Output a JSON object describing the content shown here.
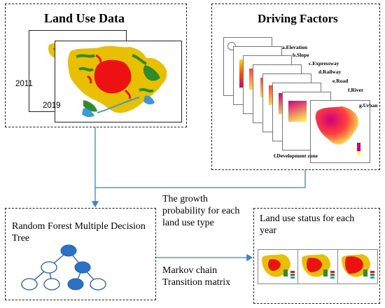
{
  "land_use": {
    "title": "Land Use Data",
    "year_back": "2011",
    "year_front": "2019"
  },
  "driving_factors": {
    "title": "Driving Factors",
    "factors": [
      "a.Elevation",
      "b.Slope",
      "c.Expressway",
      "d.Railway",
      "e.Road",
      "f.River",
      "g.Urban",
      "f.Development zone"
    ]
  },
  "random_forest": {
    "title_line1": "Random Forest Multiple Decision",
    "title_line2": "Tree"
  },
  "growth_label": {
    "line1": "The growth",
    "line2": "probability for each",
    "line3": "land use type"
  },
  "markov_label": {
    "line1": "Markov chain",
    "line2": "Transition matrix"
  },
  "land_status": {
    "title_line1": "Land use status  for each",
    "title_line2": "year"
  },
  "colors": {
    "urban": "#ee1111",
    "farmland": "#e8c000",
    "forest": "#2e8b2e",
    "water": "#3a9ad9",
    "node_fill": "#2a72c8",
    "node_stroke": "#1f5fa8",
    "arrow": "#3a86c8",
    "gradient_high": "#d0007a",
    "gradient_mid": "#ff3f3f",
    "gradient_low": "#ffff50"
  }
}
